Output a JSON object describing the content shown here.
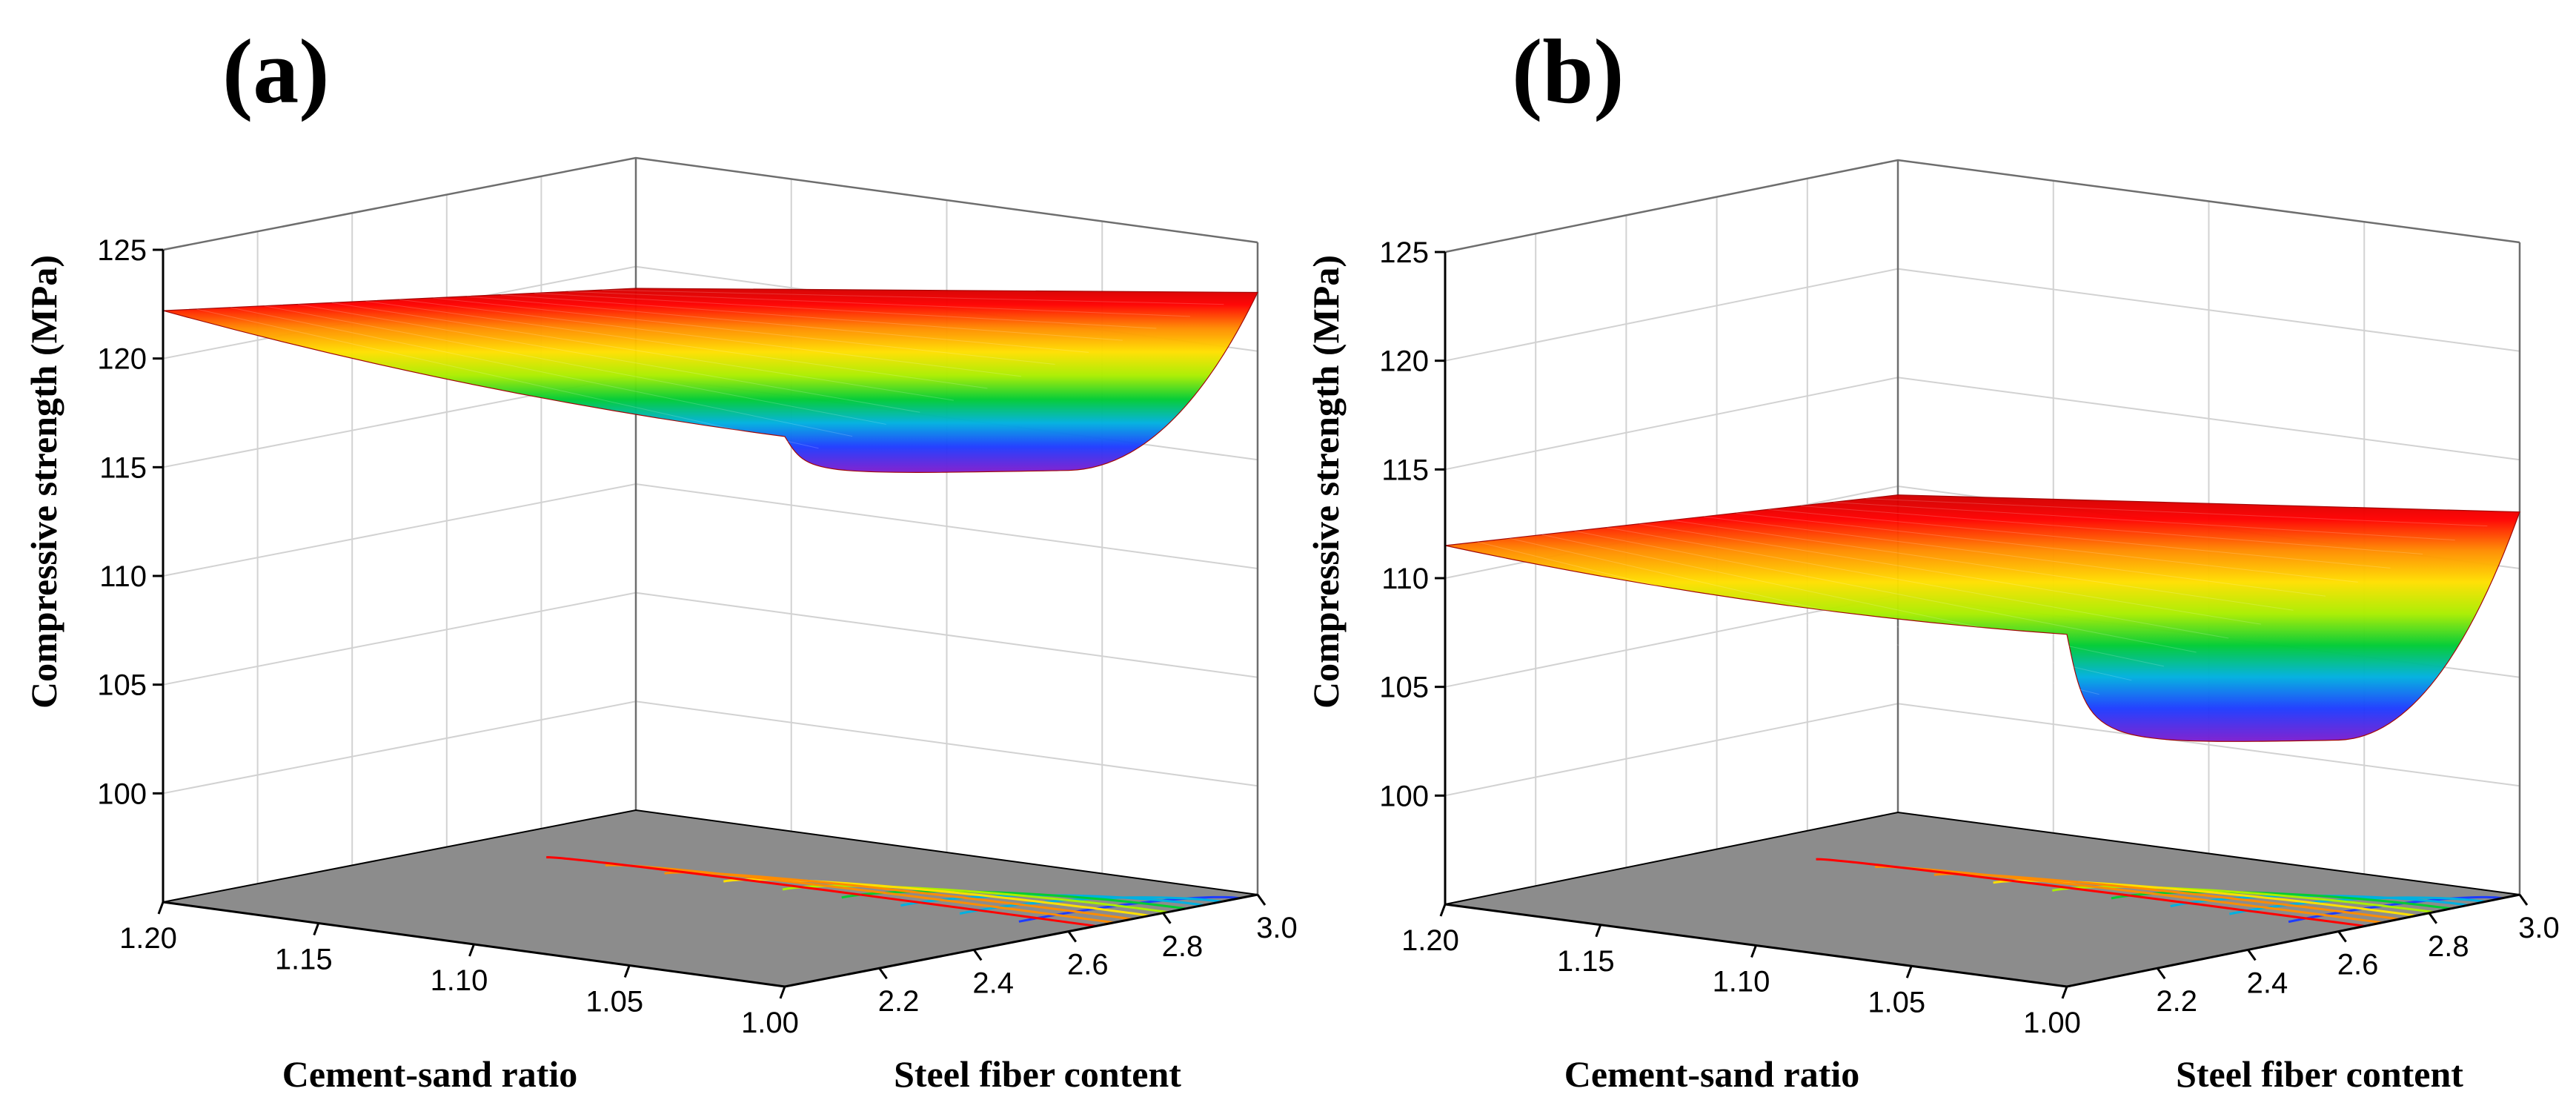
{
  "chart_data": [
    {
      "type": "surface3d",
      "panel_label": "(a)",
      "zlabel": "Compressive strength (MPa)",
      "xlabel": "Cement-sand ratio",
      "ylabel": "Steel fiber content",
      "x_ticks": [
        "1.20",
        "1.15",
        "1.10",
        "1.05",
        "1.00"
      ],
      "y_ticks": [
        "2.2",
        "2.4",
        "2.6",
        "2.8",
        "3.0"
      ],
      "z_ticks": [
        "100",
        "105",
        "110",
        "115",
        "120",
        "125"
      ],
      "xlim": [
        1.0,
        1.2
      ],
      "ylim": [
        2.0,
        3.0
      ],
      "zlim": [
        95,
        125
      ],
      "grid": true,
      "base_contours": true,
      "base_color": "#8c8c8c",
      "colormap": [
        "#7a1fd1",
        "#1e3cff",
        "#00b0e0",
        "#00cc33",
        "#aaee00",
        "#ffe000",
        "#ff8c00",
        "#ff0000",
        "#c00000"
      ],
      "surface_points": [
        {
          "cement_sand_ratio": 1.2,
          "steel_fiber_content": 2.0,
          "compressive_strength": 122.2
        },
        {
          "cement_sand_ratio": 1.0,
          "steel_fiber_content": 2.0,
          "compressive_strength": 120.3
        },
        {
          "cement_sand_ratio": 1.0,
          "steel_fiber_content": 3.0,
          "compressive_strength": 122.7
        },
        {
          "cement_sand_ratio": 1.2,
          "steel_fiber_content": 3.0,
          "compressive_strength": 119.0
        },
        {
          "cement_sand_ratio": 1.0,
          "steel_fiber_content": 2.6,
          "compressive_strength": 116.2
        }
      ]
    },
    {
      "type": "surface3d",
      "panel_label": "(b)",
      "zlabel": "Compressive strength (MPa)",
      "xlabel": "Cement-sand ratio",
      "ylabel": "Steel fiber content",
      "x_ticks": [
        "1.20",
        "1.15",
        "1.10",
        "1.05",
        "1.00"
      ],
      "y_ticks": [
        "2.2",
        "2.4",
        "2.6",
        "2.8",
        "3.0"
      ],
      "z_ticks": [
        "100",
        "105",
        "110",
        "115",
        "120",
        "125"
      ],
      "xlim": [
        1.0,
        1.2
      ],
      "ylim": [
        2.0,
        3.0
      ],
      "zlim": [
        95,
        125
      ],
      "grid": true,
      "base_contours": true,
      "base_color": "#8c8c8c",
      "colormap": [
        "#7a1fd1",
        "#1e3cff",
        "#00b0e0",
        "#00cc33",
        "#aaee00",
        "#ffe000",
        "#ff8c00",
        "#ff0000",
        "#c00000"
      ],
      "surface_points": [
        {
          "cement_sand_ratio": 1.2,
          "steel_fiber_content": 2.0,
          "compressive_strength": 111.5
        },
        {
          "cement_sand_ratio": 1.0,
          "steel_fiber_content": 2.0,
          "compressive_strength": 111.2
        },
        {
          "cement_sand_ratio": 1.0,
          "steel_fiber_content": 3.0,
          "compressive_strength": 112.6
        },
        {
          "cement_sand_ratio": 1.2,
          "steel_fiber_content": 3.0,
          "compressive_strength": 109.6
        },
        {
          "cement_sand_ratio": 1.0,
          "steel_fiber_content": 2.6,
          "compressive_strength": 103.8
        }
      ]
    }
  ]
}
